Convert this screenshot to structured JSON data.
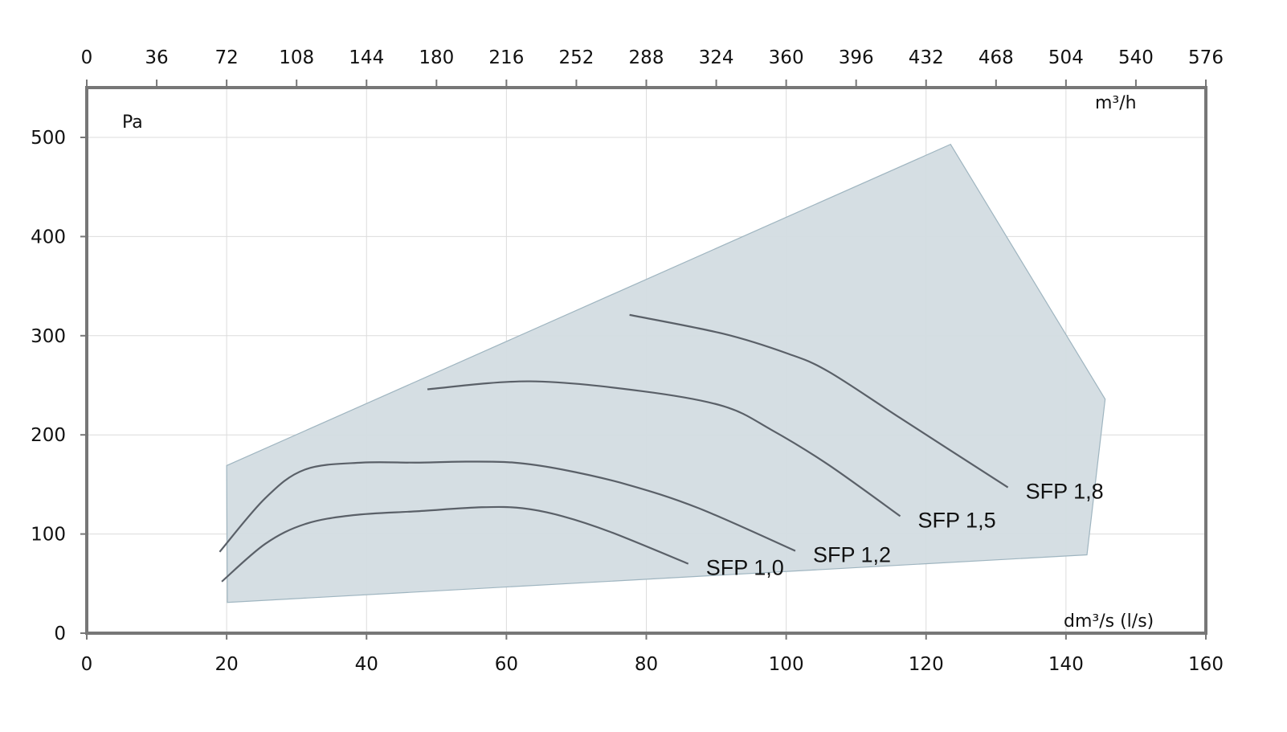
{
  "chart_data": {
    "type": "line",
    "title": "",
    "xlabel": "dm³/s (l/s)",
    "x2label": "m³/h",
    "ylabel": "Pa",
    "xlim": [
      0,
      160
    ],
    "ylim": [
      0,
      550
    ],
    "x_ticks": [
      0,
      20,
      40,
      60,
      80,
      100,
      120,
      140,
      160
    ],
    "x2_ticks": [
      0,
      36,
      72,
      108,
      144,
      180,
      216,
      252,
      288,
      324,
      360,
      396,
      432,
      468,
      504,
      540,
      576
    ],
    "y_ticks": [
      0,
      100,
      200,
      300,
      400,
      500
    ],
    "grid": true,
    "operating_area": {
      "points": [
        [
          20,
          169
        ],
        [
          123.5,
          493
        ],
        [
          145.6,
          236
        ],
        [
          143,
          79
        ],
        [
          20.1,
          31
        ]
      ],
      "fill": "#d3dce2",
      "stroke": "#9fb5c0"
    },
    "line_color": "#5a6068",
    "series": [
      {
        "name": "SFP 1,0",
        "points": [
          [
            19.3,
            52
          ],
          [
            25.5,
            90
          ],
          [
            31.2,
            110
          ],
          [
            38.1,
            119
          ],
          [
            47.3,
            123
          ],
          [
            56.5,
            127
          ],
          [
            62.3,
            126
          ],
          [
            68,
            118
          ],
          [
            74.9,
            102
          ],
          [
            86,
            70
          ]
        ]
      },
      {
        "name": "SFP 1,2",
        "points": [
          [
            19,
            82
          ],
          [
            25.5,
            136
          ],
          [
            31.2,
            165
          ],
          [
            39.3,
            172
          ],
          [
            47.3,
            172
          ],
          [
            54.2,
            173
          ],
          [
            61.1,
            172
          ],
          [
            68,
            165
          ],
          [
            77.2,
            150
          ],
          [
            87.5,
            126
          ],
          [
            101.3,
            83
          ]
        ]
      },
      {
        "name": "SFP 1,5",
        "points": [
          [
            48.7,
            246
          ],
          [
            63.4,
            254
          ],
          [
            79.5,
            244
          ],
          [
            91,
            229
          ],
          [
            97.9,
            205
          ],
          [
            106,
            170
          ],
          [
            116.3,
            118
          ]
        ]
      },
      {
        "name": "SFP 1,8",
        "points": [
          [
            77.6,
            321
          ],
          [
            91,
            302
          ],
          [
            100.2,
            282
          ],
          [
            106,
            264
          ],
          [
            116.3,
            217
          ],
          [
            131.7,
            147
          ]
        ]
      }
    ]
  }
}
